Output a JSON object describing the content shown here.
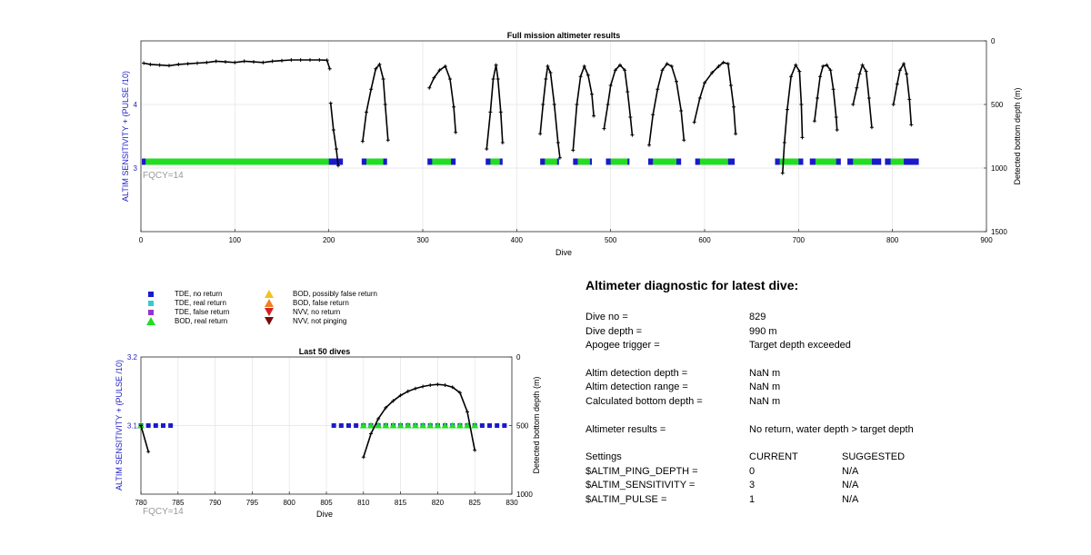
{
  "top_chart": {
    "title": "Full mission altimeter results",
    "xlabel": "Dive",
    "ylabel_left": "ALTIM SENSITIVITY + (PULSE /10)",
    "ylabel_right": "Detected bottom depth (m)",
    "annotation": "FQCY=14",
    "xticks": [
      "0",
      "100",
      "200",
      "300",
      "400",
      "500",
      "600",
      "700",
      "800",
      "900"
    ],
    "yticks_left": [
      "3",
      "4"
    ],
    "yticks_right": [
      "0",
      "500",
      "1000",
      "1500"
    ]
  },
  "bottom_chart": {
    "title": "Last 50 dives",
    "xlabel": "Dive",
    "ylabel_left": "ALTIM SENSITIVITY + (PULSE /10)",
    "ylabel_right": "Detected bottom depth (m)",
    "annotation": "FQCY=14",
    "xticks": [
      "780",
      "785",
      "790",
      "795",
      "800",
      "805",
      "810",
      "815",
      "820",
      "825",
      "830"
    ],
    "yticks_left": [
      "3.1",
      "3.2"
    ],
    "yticks_right": [
      "0",
      "500",
      "1000"
    ]
  },
  "legend": [
    {
      "label": "TDE, no return",
      "marker": "square",
      "color": "#1a1acc"
    },
    {
      "label": "TDE, real return",
      "marker": "square",
      "color": "#33cccc"
    },
    {
      "label": "TDE, false return",
      "marker": "square",
      "color": "#9933cc"
    },
    {
      "label": "BOD, real return",
      "marker": "triangle-up",
      "color": "#22dd22"
    },
    {
      "label": "BOD, possibly false return",
      "marker": "triangle-up",
      "color": "#f2c21f"
    },
    {
      "label": "BOD, false return",
      "marker": "triangle-up",
      "color": "#f08020"
    },
    {
      "label": "NVV, no return",
      "marker": "triangle-down",
      "color": "#d42020"
    },
    {
      "label": "NVV, not pinging",
      "marker": "triangle-down",
      "color": "#7a0a0a"
    }
  ],
  "diagnostic": {
    "heading": "Altimeter diagnostic for latest dive:",
    "dive_no_label": "Dive no =",
    "dive_no": "829",
    "dive_depth_label": "Dive depth =",
    "dive_depth": "990 m",
    "apogee_label": "Apogee trigger =",
    "apogee": "Target depth exceeded",
    "altim_det_depth_label": "Altim detection depth =",
    "altim_det_depth": "NaN m",
    "altim_det_range_label": "Altim detection range =",
    "altim_det_range": "NaN m",
    "calc_bottom_label": "Calculated bottom depth =",
    "calc_bottom": "NaN m",
    "results_label": "Altimeter results =",
    "results": "No return, water depth > target depth",
    "settings_label": "Settings",
    "current_label": "CURRENT",
    "suggested_label": "SUGGESTED",
    "settings": [
      {
        "name": "$ALTIM_PING_DEPTH =",
        "current": "0",
        "suggested": "N/A"
      },
      {
        "name": "$ALTIM_SENSITIVITY =",
        "current": "3",
        "suggested": "N/A"
      },
      {
        "name": "$ALTIM_PULSE =",
        "current": "1",
        "suggested": "N/A"
      }
    ]
  },
  "colors": {
    "axis_blue": "#2020c8",
    "tde_no_return": "#1a1acc",
    "bod_real_return": "#22dd22",
    "depth_line": "#000000",
    "annotation_gray": "#999999"
  },
  "chart_data": [
    {
      "type": "scatter",
      "title": "Full mission altimeter results",
      "xlabel": "Dive",
      "ylabel": "ALTIM SENSITIVITY + (PULSE /10)",
      "y2label": "Detected bottom depth (m)",
      "xlim": [
        0,
        900
      ],
      "ylim": [
        2,
        5
      ],
      "y2lim": [
        1500,
        0
      ],
      "grid": true,
      "sensitivity_value": 3.1,
      "tde_no_return_ranges": [
        [
          1,
          215
        ],
        [
          235,
          262
        ],
        [
          305,
          335
        ],
        [
          367,
          385
        ],
        [
          425,
          445
        ],
        [
          460,
          480
        ],
        [
          495,
          520
        ],
        [
          540,
          575
        ],
        [
          590,
          632
        ],
        [
          675,
          705
        ],
        [
          712,
          745
        ],
        [
          752,
          788
        ],
        [
          792,
          828
        ]
      ],
      "bod_real_return_ranges": [
        [
          5,
          200
        ],
        [
          240,
          258
        ],
        [
          310,
          330
        ],
        [
          372,
          382
        ],
        [
          430,
          443
        ],
        [
          465,
          478
        ],
        [
          500,
          518
        ],
        [
          545,
          570
        ],
        [
          595,
          625
        ],
        [
          680,
          700
        ],
        [
          718,
          740
        ],
        [
          758,
          778
        ],
        [
          798,
          812
        ]
      ],
      "series": [
        {
          "name": "Detected bottom depth (m)",
          "segments": [
            [
              [
                3,
                175
              ],
              [
                10,
                185
              ],
              [
                20,
                190
              ],
              [
                30,
                195
              ],
              [
                40,
                185
              ],
              [
                50,
                180
              ],
              [
                60,
                175
              ],
              [
                70,
                170
              ],
              [
                80,
                160
              ],
              [
                90,
                165
              ],
              [
                100,
                170
              ],
              [
                110,
                160
              ],
              [
                120,
                165
              ],
              [
                130,
                170
              ],
              [
                140,
                160
              ],
              [
                150,
                155
              ],
              [
                160,
                150
              ],
              [
                170,
                150
              ],
              [
                180,
                150
              ],
              [
                190,
                150
              ],
              [
                198,
                152
              ],
              [
                201,
                220
              ]
            ],
            [
              [
                202,
                490
              ],
              [
                205,
                700
              ],
              [
                208,
                850
              ],
              [
                210,
                980
              ]
            ],
            [
              [
                236,
                790
              ],
              [
                240,
                560
              ],
              [
                245,
                380
              ],
              [
                250,
                220
              ],
              [
                254,
                185
              ],
              [
                258,
                300
              ],
              [
                260,
                500
              ],
              [
                263,
                780
              ]
            ],
            [
              [
                307,
                370
              ],
              [
                312,
                290
              ],
              [
                318,
                230
              ],
              [
                324,
                200
              ],
              [
                329,
                300
              ],
              [
                333,
                520
              ],
              [
                335,
                720
              ]
            ],
            [
              [
                368,
                850
              ],
              [
                372,
                560
              ],
              [
                375,
                300
              ],
              [
                378,
                190
              ],
              [
                380,
                300
              ],
              [
                383,
                560
              ],
              [
                385,
                800
              ]
            ],
            [
              [
                425,
                730
              ],
              [
                428,
                500
              ],
              [
                431,
                300
              ],
              [
                433,
                200
              ],
              [
                436,
                250
              ],
              [
                440,
                500
              ],
              [
                444,
                800
              ],
              [
                446,
                920
              ]
            ],
            [
              [
                460,
                860
              ],
              [
                464,
                500
              ],
              [
                468,
                280
              ],
              [
                472,
                200
              ],
              [
                476,
                270
              ],
              [
                480,
                420
              ],
              [
                482,
                590
              ]
            ],
            [
              [
                493,
                690
              ],
              [
                497,
                500
              ],
              [
                500,
                350
              ],
              [
                505,
                230
              ],
              [
                510,
                190
              ],
              [
                515,
                230
              ],
              [
                518,
                400
              ],
              [
                521,
                600
              ],
              [
                523,
                740
              ]
            ],
            [
              [
                541,
                820
              ],
              [
                545,
                580
              ],
              [
                550,
                380
              ],
              [
                555,
                230
              ],
              [
                560,
                180
              ],
              [
                565,
                200
              ],
              [
                570,
                320
              ],
              [
                575,
                550
              ],
              [
                578,
                780
              ]
            ],
            [
              [
                589,
                640
              ],
              [
                595,
                450
              ],
              [
                600,
                330
              ],
              [
                608,
                250
              ],
              [
                615,
                200
              ],
              [
                620,
                170
              ],
              [
                625,
                180
              ],
              [
                628,
                350
              ],
              [
                631,
                520
              ],
              [
                633,
                730
              ]
            ],
            [
              [
                683,
                1040
              ],
              [
                685,
                800
              ],
              [
                688,
                540
              ],
              [
                692,
                280
              ],
              [
                697,
                190
              ],
              [
                701,
                240
              ],
              [
                703,
                500
              ],
              [
                704,
                760
              ]
            ],
            [
              [
                717,
                630
              ],
              [
                720,
                450
              ],
              [
                723,
                280
              ],
              [
                726,
                200
              ],
              [
                730,
                190
              ],
              [
                734,
                230
              ],
              [
                737,
                380
              ],
              [
                740,
                600
              ],
              [
                741,
                700
              ]
            ],
            [
              [
                758,
                500
              ],
              [
                762,
                370
              ],
              [
                765,
                260
              ],
              [
                768,
                190
              ],
              [
                772,
                240
              ],
              [
                775,
                450
              ],
              [
                778,
                680
              ]
            ],
            [
              [
                801,
                500
              ],
              [
                805,
                340
              ],
              [
                808,
                230
              ],
              [
                812,
                180
              ],
              [
                815,
                260
              ],
              [
                818,
                460
              ],
              [
                820,
                660
              ]
            ]
          ]
        }
      ]
    },
    {
      "type": "scatter",
      "title": "Last 50 dives",
      "xlabel": "Dive",
      "ylabel": "ALTIM SENSITIVITY + (PULSE /10)",
      "y2label": "Detected bottom depth (m)",
      "xlim": [
        780,
        830
      ],
      "ylim": [
        3.0,
        3.2
      ],
      "y2lim": [
        1000,
        0
      ],
      "grid": true,
      "tde_no_return_dives": [
        780,
        781,
        782,
        783,
        784,
        806,
        807,
        808,
        809,
        810,
        811,
        812,
        813,
        814,
        815,
        816,
        817,
        818,
        819,
        820,
        821,
        822,
        823,
        824,
        825,
        826,
        827,
        828,
        829
      ],
      "bod_real_return_dives": [
        780,
        810,
        811,
        812,
        813,
        814,
        815,
        816,
        817,
        818,
        819,
        820,
        821,
        822,
        823,
        824,
        825
      ],
      "series": [
        {
          "name": "Detected bottom depth (m)",
          "segments": [
            [
              [
                780,
                500
              ],
              [
                781,
                690
              ]
            ],
            [
              [
                810,
                730
              ],
              [
                811,
                560
              ],
              [
                812,
                450
              ],
              [
                813,
                370
              ],
              [
                814,
                320
              ],
              [
                815,
                280
              ],
              [
                816,
                250
              ],
              [
                817,
                230
              ],
              [
                818,
                215
              ],
              [
                819,
                205
              ],
              [
                820,
                200
              ],
              [
                821,
                205
              ],
              [
                822,
                220
              ],
              [
                823,
                260
              ],
              [
                824,
                400
              ],
              [
                825,
                680
              ]
            ]
          ]
        }
      ]
    }
  ]
}
